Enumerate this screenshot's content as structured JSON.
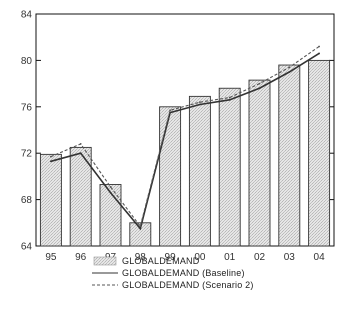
{
  "chart_data": {
    "type": "bar",
    "title": "",
    "xlabel": "",
    "ylabel": "",
    "categories": [
      "95",
      "96",
      "97",
      "98",
      "99",
      "00",
      "01",
      "02",
      "03",
      "04"
    ],
    "ylim": [
      64,
      84
    ],
    "yticks": [
      "64",
      "68",
      "72",
      "76",
      "80",
      "84"
    ],
    "grid": false,
    "legend_position": "bottom",
    "series": [
      {
        "name": "GLOBALDEMAND",
        "kind": "bar",
        "color": "#d0d0d0",
        "values": [
          71.9,
          72.5,
          69.3,
          66.0,
          76.0,
          76.9,
          77.6,
          78.3,
          79.6,
          80.0
        ]
      },
      {
        "name": "GLOBALDEMAND (Baseline)",
        "kind": "line",
        "style": "solid",
        "color": "#333333",
        "values": [
          71.3,
          72.0,
          68.6,
          65.5,
          75.5,
          76.2,
          76.6,
          77.6,
          79.0,
          80.6
        ]
      },
      {
        "name": "GLOBALDEMAND (Scenario 2)",
        "kind": "line",
        "style": "dashed",
        "color": "#555555",
        "values": [
          71.7,
          72.8,
          69.1,
          65.7,
          75.7,
          76.4,
          76.8,
          78.0,
          79.4,
          81.2
        ]
      }
    ]
  }
}
